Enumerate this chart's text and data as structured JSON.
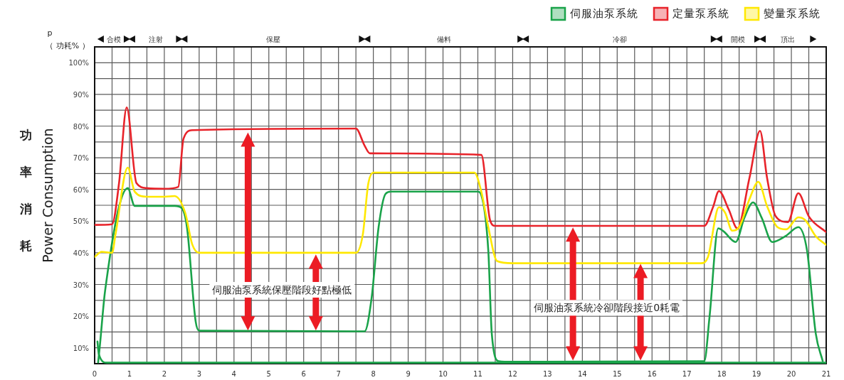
{
  "chart_data": {
    "type": "line",
    "ylabel": "Power Consumption",
    "annotations": [
      "p",
      "（ 功耗% ）",
      "功率消耗",
      "伺服油泵系統保壓階段好點極低",
      "伺服油泵系統冷卻階段接近0耗電",
      "合模",
      "注射",
      "保壓",
      "備料",
      "冷卻",
      "開模",
      "頂出"
    ],
    "xlim": [
      0,
      21
    ],
    "xticks": [
      0,
      {
        "value": 0.5,
        "label": null
      },
      1,
      {
        "value": 1.5,
        "label": null
      },
      2,
      {
        "value": 2.5,
        "label": null
      },
      3,
      {
        "value": 3.5,
        "label": null
      },
      4,
      {
        "value": 4.5,
        "label": null
      },
      5,
      {
        "value": 5.5,
        "label": null
      },
      6,
      {
        "value": 6.5,
        "label": null
      },
      7,
      {
        "value": 7.5,
        "label": null
      },
      8,
      {
        "value": 8.5,
        "label": null
      },
      9,
      {
        "value": 9.5,
        "label": null
      },
      10,
      {
        "value": 10.5,
        "label": null
      },
      11,
      {
        "value": 11.5,
        "label": null
      },
      12,
      {
        "value": 12.5,
        "label": null
      },
      13,
      {
        "value": 13.5,
        "label": null
      },
      14,
      {
        "value": 14.5,
        "label": null
      },
      15,
      {
        "value": 15.5,
        "label": null
      },
      16,
      {
        "value": 16.5,
        "label": null
      },
      17,
      {
        "value": 17.5,
        "label": null
      },
      18,
      {
        "value": 18.5,
        "label": null
      },
      19,
      {
        "value": 19.5,
        "label": null
      },
      20,
      {
        "value": 20.5,
        "label": null
      },
      21
    ],
    "ylim": [
      5,
      105
    ],
    "yticks": [
      {
        "value": 10,
        "label": "10%"
      },
      {
        "value": 15,
        "label": null
      },
      {
        "value": 20,
        "label": "20%"
      },
      {
        "value": 25,
        "label": null
      },
      {
        "value": 30,
        "label": "30%"
      },
      {
        "value": 35,
        "label": null
      },
      {
        "value": 40,
        "label": "40%"
      },
      {
        "value": 45,
        "label": null
      },
      {
        "value": 50,
        "label": "50%"
      },
      {
        "value": 55,
        "label": null
      },
      {
        "value": 60,
        "label": "60%"
      },
      {
        "value": 65,
        "label": null
      },
      {
        "value": 70,
        "label": "70%"
      },
      {
        "value": 75,
        "label": null
      },
      {
        "value": 80,
        "label": "80%"
      },
      {
        "value": 85,
        "label": null
      },
      {
        "value": 90,
        "label": "90%"
      },
      {
        "value": 95,
        "label": null
      },
      {
        "value": 100,
        "label": "100%"
      }
    ],
    "grid": true,
    "legend": "top right",
    "marker": "none",
    "line_style": "solid",
    "series": [
      {
        "name": "伺服油泵系統",
        "color": "#1aa34a",
        "x": [
          0.1,
          0.15,
          0.3,
          0.95,
          1.15,
          1.5,
          2.3,
          2.5,
          2.65,
          2.9,
          3,
          7.5,
          7.75,
          7.95,
          8.15,
          8.35,
          8.5,
          11,
          11.1,
          11.3,
          11.4,
          11.6,
          12,
          17.5,
          17.65,
          17.9,
          18.05,
          18.4,
          18.65,
          18.9,
          19.15,
          19.45,
          19.85,
          20.2,
          20.45,
          20.7,
          20.9
        ],
        "values": [
          5.4,
          10.7,
          28,
          60.4,
          54.8,
          54.8,
          54.8,
          54.1,
          48.1,
          18.3,
          15.4,
          15.2,
          15.2,
          25.7,
          48,
          58.6,
          59.3,
          59.3,
          58.2,
          40.7,
          14.5,
          5.8,
          5.6,
          5.8,
          19.7,
          47.7,
          46.8,
          43.4,
          51,
          55.9,
          51,
          43.4,
          45.4,
          48.1,
          40.7,
          14.5,
          5.8
        ]
      },
      {
        "color": "#1aa34a",
        "x": [
          0.08,
          0.12,
          0.35,
          21
        ],
        "values": [
          12,
          8,
          5.3,
          5.3
        ]
      },
      {
        "name": "定量泵系統",
        "color": "#e8232a",
        "x": [
          0,
          0.5,
          0.7,
          0.92,
          1.2,
          1.5,
          2,
          2.4,
          2.55,
          2.8,
          7.5,
          7.75,
          7.9,
          11.1,
          11.35,
          11.5,
          17.5,
          17.75,
          17.92,
          18.2,
          18.45,
          18.8,
          19.1,
          19.3,
          19.55,
          19.9,
          20.2,
          20.5,
          21
        ],
        "values": [
          48.8,
          49,
          62,
          85.9,
          62,
          60.4,
          60.2,
          60.8,
          76,
          78.7,
          79.2,
          73.8,
          71.4,
          70.9,
          50.3,
          48.5,
          48.5,
          54.4,
          59.5,
          53.7,
          47.7,
          63.8,
          78.5,
          63.8,
          51.5,
          49.7,
          58.8,
          51.5,
          46.5
        ]
      },
      {
        "name": "變量泵系統",
        "color": "#ffe800",
        "x": [
          0,
          0.2,
          0.5,
          0.6,
          0.95,
          1.15,
          1.5,
          2,
          2.3,
          2.6,
          2.8,
          3,
          7.5,
          7.7,
          7.85,
          8,
          10.9,
          11.1,
          11.3,
          11.55,
          12,
          17.4,
          17.6,
          17.92,
          18.1,
          18.3,
          18.5,
          18.8,
          19.05,
          19.3,
          19.6,
          19.85,
          20.2,
          20.4,
          20.7,
          21
        ],
        "values": [
          38.7,
          40.3,
          40,
          45.9,
          66.9,
          59.3,
          57.7,
          57.7,
          57.9,
          52.6,
          42.7,
          40,
          40,
          45.9,
          61.5,
          65.3,
          65.3,
          59.3,
          48.1,
          37.4,
          36.7,
          36.7,
          38.5,
          54.4,
          52.6,
          47,
          48.1,
          57,
          62.4,
          54.8,
          48.1,
          47.4,
          51.2,
          50.3,
          45.2,
          42.5
        ]
      }
    ]
  }
}
